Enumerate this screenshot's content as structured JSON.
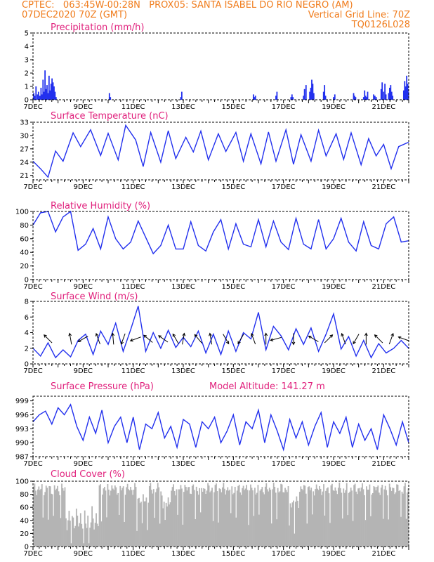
{
  "header": {
    "line1": "CPTEC:   063:45W-00:28N   PROX05: SANTA ISABEL DO RIO NEGRO (AM)",
    "line2_left": "07DEC2020 70Z (GMT)",
    "line2_right": "Vertical Grid Line: 70Z",
    "line3_right": "TQ0126L028"
  },
  "colors": {
    "header": "#f07c1c",
    "title": "#e0207c",
    "series": "#2230ee",
    "cloud": "#b4b4b4"
  },
  "chart_data": [
    {
      "type": "bar",
      "title": "Precipitation (mm/h)",
      "ylim": [
        0,
        5
      ],
      "yticks": [
        0,
        1,
        2,
        3,
        4,
        5
      ],
      "xlabels": [
        "7DEC",
        "9DEC",
        "11DEC",
        "13DEC",
        "15DEC",
        "17DEC",
        "19DEC",
        "21DEC"
      ],
      "x": [
        0.03,
        0.07,
        0.12,
        0.18,
        0.22,
        0.27,
        0.32,
        0.36,
        0.4,
        0.44,
        0.48,
        0.52,
        0.56,
        0.6,
        0.64,
        0.68,
        0.72,
        0.76,
        0.8,
        0.84,
        0.88,
        0.92,
        3.05,
        3.09,
        5.9,
        5.94,
        8.8,
        8.84,
        8.88,
        9.7,
        9.74,
        10.3,
        10.34,
        10.38,
        10.8,
        10.84,
        10.9,
        11.05,
        11.09,
        11.13,
        11.17,
        11.21,
        11.6,
        11.64,
        11.68,
        12.0,
        12.05,
        12.8,
        12.84,
        12.88,
        13.2,
        13.24,
        13.28,
        13.32,
        13.36,
        13.6,
        13.65,
        13.7,
        13.9,
        13.94,
        14.0,
        14.05,
        14.09,
        14.2,
        14.24,
        14.28,
        14.32,
        14.36,
        14.8,
        14.84,
        14.88,
        14.92,
        14.96,
        14.99
      ],
      "values": [
        0.5,
        0.3,
        1.0,
        0.4,
        0.6,
        0.3,
        0.9,
        0.4,
        1.5,
        0.6,
        2.2,
        0.8,
        1.1,
        0.5,
        1.8,
        0.7,
        1.2,
        1.6,
        1.3,
        1.0,
        0.6,
        0.2,
        0.5,
        0.2,
        0.2,
        0.6,
        0.4,
        0.2,
        0.3,
        0.3,
        0.6,
        0.2,
        0.4,
        0.2,
        0.3,
        0.8,
        1.1,
        0.6,
        0.9,
        1.5,
        1.2,
        0.5,
        0.6,
        1.1,
        0.3,
        0.2,
        0.4,
        0.5,
        0.3,
        0.2,
        0.2,
        0.7,
        0.3,
        0.2,
        0.6,
        0.4,
        0.3,
        0.2,
        0.8,
        1.3,
        0.6,
        1.2,
        0.4,
        0.5,
        0.9,
        1.1,
        0.6,
        0.3,
        0.7,
        1.4,
        1.0,
        1.8,
        1.2,
        0.6
      ]
    },
    {
      "type": "line",
      "title": "Surface Temperature (nC)",
      "ylim": [
        20,
        33
      ],
      "yticks": [
        21,
        24,
        27,
        30,
        33
      ],
      "xlabels": [
        "7DEC",
        "9DEC",
        "11DEC",
        "13DEC",
        "15DEC",
        "17DEC",
        "19DEC",
        "21DEC"
      ],
      "x": [
        0,
        0.3,
        0.6,
        0.9,
        1.2,
        1.6,
        1.9,
        2.3,
        2.7,
        3.0,
        3.4,
        3.7,
        4.1,
        4.4,
        4.7,
        5.1,
        5.4,
        5.7,
        6.1,
        6.4,
        6.7,
        7.0,
        7.4,
        7.7,
        8.1,
        8.4,
        8.7,
        9.1,
        9.4,
        9.7,
        10.1,
        10.4,
        10.7,
        11.1,
        11.4,
        11.7,
        12.1,
        12.4,
        12.7,
        13.1,
        13.4,
        13.7,
        14.0,
        14.3,
        14.6,
        15.0
      ],
      "values": [
        24.2,
        22.5,
        20.6,
        26.5,
        24.2,
        30.6,
        27.5,
        31.3,
        25.5,
        30.5,
        24.5,
        32.3,
        29.0,
        23.0,
        30.7,
        24.0,
        31.1,
        24.8,
        29.6,
        26.3,
        31.0,
        24.5,
        30.4,
        26.4,
        30.7,
        24.2,
        30.4,
        23.6,
        30.8,
        24.2,
        31.3,
        23.5,
        30.2,
        24.2,
        31.2,
        25.4,
        30.4,
        24.6,
        30.6,
        23.4,
        29.3,
        25.4,
        28.0,
        22.5,
        27.5,
        28.5
      ]
    },
    {
      "type": "line",
      "title": "Relative Humidity (%)",
      "ylim": [
        0,
        100
      ],
      "yticks": [
        0,
        20,
        40,
        60,
        80,
        100
      ],
      "xlabels": [
        "7DEC",
        "9DEC",
        "11DEC",
        "13DEC",
        "15DEC",
        "17DEC",
        "19DEC",
        "21DEC"
      ],
      "x": [
        0,
        0.3,
        0.6,
        0.9,
        1.2,
        1.5,
        1.8,
        2.1,
        2.4,
        2.7,
        3.0,
        3.3,
        3.6,
        3.9,
        4.2,
        4.5,
        4.8,
        5.1,
        5.4,
        5.7,
        6.0,
        6.3,
        6.6,
        6.9,
        7.2,
        7.5,
        7.8,
        8.1,
        8.4,
        8.7,
        9.0,
        9.3,
        9.6,
        9.9,
        10.2,
        10.5,
        10.8,
        11.1,
        11.4,
        11.7,
        12.0,
        12.3,
        12.6,
        12.9,
        13.2,
        13.5,
        13.8,
        14.1,
        14.4,
        14.7,
        15.0
      ],
      "values": [
        80,
        98,
        100,
        70,
        92,
        100,
        43,
        52,
        75,
        45,
        92,
        60,
        45,
        55,
        86,
        62,
        38,
        50,
        80,
        45,
        45,
        85,
        50,
        42,
        70,
        88,
        45,
        82,
        52,
        48,
        88,
        48,
        86,
        55,
        44,
        90,
        52,
        45,
        88,
        45,
        60,
        90,
        55,
        42,
        85,
        50,
        45,
        82,
        92,
        55,
        57
      ]
    },
    {
      "type": "line",
      "title": "Surface Wind (m/s)",
      "ylim": [
        0,
        8
      ],
      "yticks": [
        0,
        2,
        4,
        6,
        8
      ],
      "xlabels": [
        "7DEC",
        "9DEC",
        "11DEC",
        "13DEC",
        "15DEC",
        "17DEC",
        "19DEC",
        "21DEC"
      ],
      "x": [
        0,
        0.3,
        0.6,
        0.9,
        1.2,
        1.5,
        1.8,
        2.1,
        2.4,
        2.7,
        3.0,
        3.3,
        3.6,
        3.9,
        4.2,
        4.5,
        4.8,
        5.1,
        5.4,
        5.7,
        6.0,
        6.3,
        6.6,
        6.9,
        7.2,
        7.5,
        7.8,
        8.1,
        8.4,
        8.7,
        9.0,
        9.3,
        9.6,
        9.9,
        10.2,
        10.5,
        10.8,
        11.1,
        11.4,
        11.7,
        12.0,
        12.3,
        12.6,
        12.9,
        13.2,
        13.5,
        13.8,
        14.1,
        14.4,
        14.7,
        15.0
      ],
      "values": [
        2.0,
        1.0,
        2.7,
        0.8,
        1.8,
        0.9,
        3.0,
        3.8,
        1.2,
        4.2,
        2.5,
        5.2,
        1.6,
        4.4,
        7.4,
        1.6,
        4.0,
        2.0,
        4.3,
        2.1,
        3.4,
        2.2,
        4.2,
        1.4,
        3.8,
        1.2,
        4.2,
        1.6,
        4.0,
        3.2,
        6.6,
        1.8,
        4.8,
        3.6,
        1.8,
        4.5,
        2.5,
        4.6,
        1.6,
        3.8,
        6.4,
        1.9,
        3.5,
        1.0,
        3.0,
        0.8,
        2.6,
        1.4,
        2.0,
        3.0,
        2.0
      ],
      "arrows_x": [
        0.6,
        1.5,
        2.0,
        2.6,
        3.2,
        3.6,
        4.1,
        4.6,
        5.2,
        5.7,
        6.0,
        6.6,
        7.1,
        7.7,
        8.3,
        8.8,
        9.3,
        9.7,
        10.4,
        11.2,
        11.8,
        12.4,
        12.9,
        13.3,
        13.8,
        14.3,
        14.8
      ],
      "arrows_dir_deg": [
        135,
        100,
        210,
        110,
        95,
        250,
        200,
        140,
        145,
        120,
        80,
        130,
        100,
        300,
        240,
        110,
        90,
        195,
        270,
        150,
        45,
        110,
        240,
        90,
        135,
        70,
        160
      ]
    },
    {
      "type": "line",
      "title": "Surface Pressure (hPa)",
      "annotation": "Model Altitude: 141.27 m",
      "ylim": [
        987,
        1000
      ],
      "yticks": [
        987,
        990,
        993,
        996,
        999
      ],
      "xlabels": [
        "7DEC",
        "9DEC",
        "11DEC",
        "13DEC",
        "15DEC",
        "17DEC",
        "19DEC",
        "21DEC"
      ],
      "x": [
        0,
        0.25,
        0.5,
        0.75,
        1.0,
        1.25,
        1.5,
        1.75,
        2.0,
        2.25,
        2.5,
        2.75,
        3.0,
        3.25,
        3.5,
        3.75,
        4.0,
        4.25,
        4.5,
        4.75,
        5.0,
        5.25,
        5.5,
        5.75,
        6.0,
        6.25,
        6.5,
        6.75,
        7.0,
        7.25,
        7.5,
        7.75,
        8.0,
        8.25,
        8.5,
        8.75,
        9.0,
        9.25,
        9.5,
        9.75,
        10.0,
        10.25,
        10.5,
        10.75,
        11.0,
        11.25,
        11.5,
        11.75,
        12.0,
        12.25,
        12.5,
        12.75,
        13.0,
        13.25,
        13.5,
        13.75,
        14.0,
        14.25,
        14.5,
        14.75,
        15.0
      ],
      "values": [
        994.5,
        996.0,
        996.8,
        994.0,
        997.5,
        996.0,
        998.2,
        993.5,
        990.5,
        995.5,
        992.0,
        997.0,
        990.0,
        993.5,
        995.5,
        990.0,
        995.5,
        988.5,
        994.0,
        993.0,
        996.5,
        991.0,
        993.5,
        989.0,
        995.0,
        994.0,
        989.0,
        994.5,
        993.0,
        995.5,
        990.0,
        992.5,
        996.0,
        989.5,
        994.5,
        993.0,
        997.0,
        990.0,
        996.0,
        992.5,
        988.5,
        995.0,
        991.0,
        994.5,
        989.5,
        993.5,
        996.5,
        989.0,
        994.5,
        992.0,
        995.5,
        989.0,
        994.0,
        990.5,
        993.0,
        988.5,
        996.0,
        993.0,
        989.5,
        994.5,
        990.0
      ]
    },
    {
      "type": "bar",
      "title": "Cloud Cover (%)",
      "ylim": [
        0,
        100
      ],
      "yticks": [
        0,
        20,
        40,
        60,
        80,
        100
      ],
      "xlabels": [
        "7DEC",
        "9DEC",
        "11DEC",
        "13DEC",
        "15DEC",
        "17DEC",
        "19DEC",
        "21DEC"
      ]
    }
  ]
}
